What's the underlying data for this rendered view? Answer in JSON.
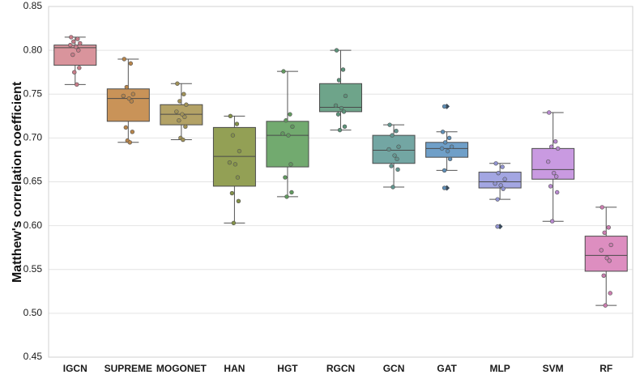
{
  "chart_data": {
    "type": "box",
    "title": "",
    "xlabel": "",
    "ylabel": "Matthew's correlation coefficient",
    "ylim": [
      0.45,
      0.85
    ],
    "yticks": [
      "0.45",
      "0.50",
      "0.55",
      "0.60",
      "0.65",
      "0.70",
      "0.75",
      "0.80",
      "0.85"
    ],
    "grid": true,
    "categories": [
      "IGCN",
      "SUPREME",
      "MOGONET",
      "HAN",
      "HGT",
      "RGCN",
      "GCN",
      "GAT",
      "MLP",
      "SVM",
      "RF"
    ],
    "boxes": [
      {
        "name": "IGCN",
        "color": "#d9949c",
        "dot": "#c97d8a",
        "min": 0.761,
        "q1": 0.783,
        "median": 0.803,
        "q3": 0.806,
        "max": 0.815,
        "outliers": [],
        "points": [
          0.815,
          0.813,
          0.81,
          0.808,
          0.806,
          0.804,
          0.8,
          0.795,
          0.78,
          0.775,
          0.761
        ]
      },
      {
        "name": "SUPREME",
        "color": "#c99358",
        "dot": "#b8854a",
        "min": 0.695,
        "q1": 0.719,
        "median": 0.745,
        "q3": 0.756,
        "max": 0.79,
        "outliers": [],
        "points": [
          0.79,
          0.785,
          0.758,
          0.75,
          0.748,
          0.745,
          0.742,
          0.712,
          0.707,
          0.697,
          0.695
        ]
      },
      {
        "name": "MOGONET",
        "color": "#b3a266",
        "dot": "#a19257",
        "min": 0.698,
        "q1": 0.715,
        "median": 0.727,
        "q3": 0.738,
        "max": 0.762,
        "outliers": [],
        "points": [
          0.762,
          0.75,
          0.742,
          0.738,
          0.73,
          0.727,
          0.724,
          0.72,
          0.713,
          0.7,
          0.698
        ]
      },
      {
        "name": "HAN",
        "color": "#93a055",
        "dot": "#849248",
        "min": 0.603,
        "q1": 0.645,
        "median": 0.679,
        "q3": 0.712,
        "max": 0.725,
        "outliers": [],
        "points": [
          0.725,
          0.716,
          0.703,
          0.685,
          0.672,
          0.67,
          0.655,
          0.637,
          0.628,
          0.603
        ]
      },
      {
        "name": "HGT",
        "color": "#72aa6f",
        "dot": "#61995f",
        "min": 0.633,
        "q1": 0.667,
        "median": 0.703,
        "q3": 0.719,
        "max": 0.776,
        "outliers": [],
        "points": [
          0.776,
          0.727,
          0.72,
          0.713,
          0.705,
          0.703,
          0.67,
          0.655,
          0.638,
          0.633
        ]
      },
      {
        "name": "RGCN",
        "color": "#6ea48a",
        "dot": "#5c937a",
        "min": 0.709,
        "q1": 0.73,
        "median": 0.735,
        "q3": 0.762,
        "max": 0.8,
        "outliers": [],
        "points": [
          0.8,
          0.778,
          0.766,
          0.748,
          0.737,
          0.734,
          0.73,
          0.727,
          0.713,
          0.709
        ]
      },
      {
        "name": "GCN",
        "color": "#73a6a3",
        "dot": "#62958f",
        "min": 0.644,
        "q1": 0.671,
        "median": 0.686,
        "q3": 0.703,
        "max": 0.715,
        "outliers": [],
        "points": [
          0.715,
          0.708,
          0.703,
          0.69,
          0.687,
          0.68,
          0.676,
          0.668,
          0.664,
          0.644
        ]
      },
      {
        "name": "GAT",
        "color": "#6f9fc8",
        "dot": "#5e8fb8",
        "min": 0.663,
        "q1": 0.678,
        "median": 0.688,
        "q3": 0.695,
        "max": 0.707,
        "outliers": [
          0.736,
          0.643
        ],
        "points": [
          0.707,
          0.7,
          0.695,
          0.69,
          0.688,
          0.685,
          0.676,
          0.663
        ]
      },
      {
        "name": "MLP",
        "color": "#a3a6e2",
        "dot": "#9194d2",
        "min": 0.63,
        "q1": 0.643,
        "median": 0.65,
        "q3": 0.661,
        "max": 0.671,
        "outliers": [
          0.599
        ],
        "points": [
          0.671,
          0.667,
          0.66,
          0.653,
          0.648,
          0.646,
          0.642,
          0.63
        ]
      },
      {
        "name": "SVM",
        "color": "#c99ae1",
        "dot": "#b889d0",
        "min": 0.605,
        "q1": 0.653,
        "median": 0.664,
        "q3": 0.688,
        "max": 0.729,
        "outliers": [],
        "points": [
          0.729,
          0.696,
          0.69,
          0.688,
          0.673,
          0.66,
          0.656,
          0.645,
          0.638,
          0.605
        ]
      },
      {
        "name": "RF",
        "color": "#dd8ec0",
        "dot": "#cc7db0",
        "min": 0.509,
        "q1": 0.548,
        "median": 0.566,
        "q3": 0.588,
        "max": 0.621,
        "outliers": [],
        "points": [
          0.621,
          0.598,
          0.592,
          0.578,
          0.572,
          0.563,
          0.56,
          0.543,
          0.523,
          0.509
        ]
      }
    ]
  }
}
